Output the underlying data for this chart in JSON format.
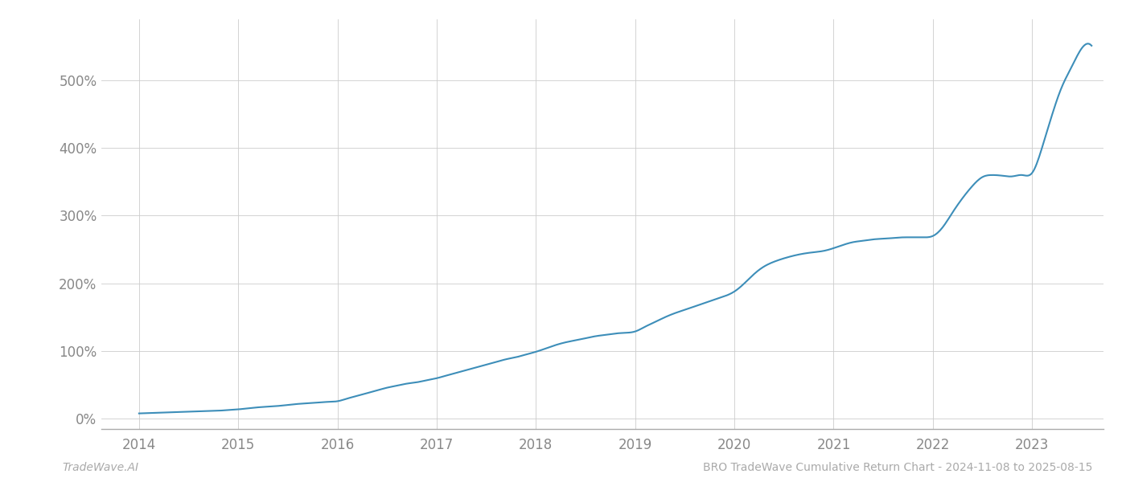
{
  "title": "BRO TradeWave Cumulative Return Chart - 2024-11-08 to 2025-08-15",
  "watermark": "TradeWave.AI",
  "line_color": "#3d8eb9",
  "background_color": "#ffffff",
  "grid_color": "#cccccc",
  "x_years": [
    2014,
    2015,
    2016,
    2017,
    2018,
    2019,
    2020,
    2021,
    2022,
    2023
  ],
  "y_ticks": [
    0,
    100,
    200,
    300,
    400,
    500
  ],
  "ylim": [
    -15,
    590
  ],
  "xlim_start": 2013.62,
  "xlim_end": 2023.72,
  "cumulative_data": {
    "years": [
      2014.0,
      2014.1,
      2014.2,
      2014.3,
      2014.4,
      2014.5,
      2014.6,
      2014.7,
      2014.8,
      2014.9,
      2015.0,
      2015.1,
      2015.2,
      2015.3,
      2015.4,
      2015.5,
      2015.6,
      2015.7,
      2015.8,
      2015.9,
      2016.0,
      2016.1,
      2016.2,
      2016.3,
      2016.4,
      2016.5,
      2016.6,
      2016.7,
      2016.8,
      2016.9,
      2017.0,
      2017.1,
      2017.2,
      2017.3,
      2017.4,
      2017.5,
      2017.6,
      2017.7,
      2017.8,
      2017.9,
      2018.0,
      2018.1,
      2018.2,
      2018.3,
      2018.4,
      2018.5,
      2018.6,
      2018.7,
      2018.8,
      2018.9,
      2019.0,
      2019.1,
      2019.2,
      2019.3,
      2019.4,
      2019.5,
      2019.6,
      2019.7,
      2019.8,
      2019.9,
      2020.0,
      2020.1,
      2020.2,
      2020.3,
      2020.4,
      2020.5,
      2020.6,
      2020.7,
      2020.8,
      2020.9,
      2021.0,
      2021.1,
      2021.2,
      2021.3,
      2021.4,
      2021.5,
      2021.6,
      2021.7,
      2021.8,
      2021.9,
      2022.0,
      2022.1,
      2022.2,
      2022.3,
      2022.4,
      2022.5,
      2022.6,
      2022.7,
      2022.8,
      2022.9,
      2023.0,
      2023.1,
      2023.2,
      2023.3,
      2023.4,
      2023.5,
      2023.6
    ],
    "values": [
      8,
      8.5,
      9,
      9.5,
      10,
      10.5,
      11,
      11.5,
      12,
      13,
      14,
      15.5,
      17,
      18,
      19,
      20.5,
      22,
      23,
      24,
      25,
      26,
      30,
      34,
      38,
      42,
      46,
      49,
      52,
      54,
      57,
      60,
      64,
      68,
      72,
      76,
      80,
      84,
      88,
      91,
      95,
      99,
      104,
      109,
      113,
      116,
      119,
      122,
      124,
      126,
      127,
      129,
      136,
      143,
      150,
      156,
      161,
      166,
      171,
      176,
      181,
      188,
      200,
      214,
      225,
      232,
      237,
      241,
      244,
      246,
      248,
      252,
      257,
      261,
      263,
      265,
      266,
      267,
      268,
      268,
      268,
      270,
      283,
      305,
      326,
      344,
      357,
      360,
      359,
      358,
      360,
      363,
      400,
      448,
      490,
      520,
      547,
      551
    ]
  }
}
